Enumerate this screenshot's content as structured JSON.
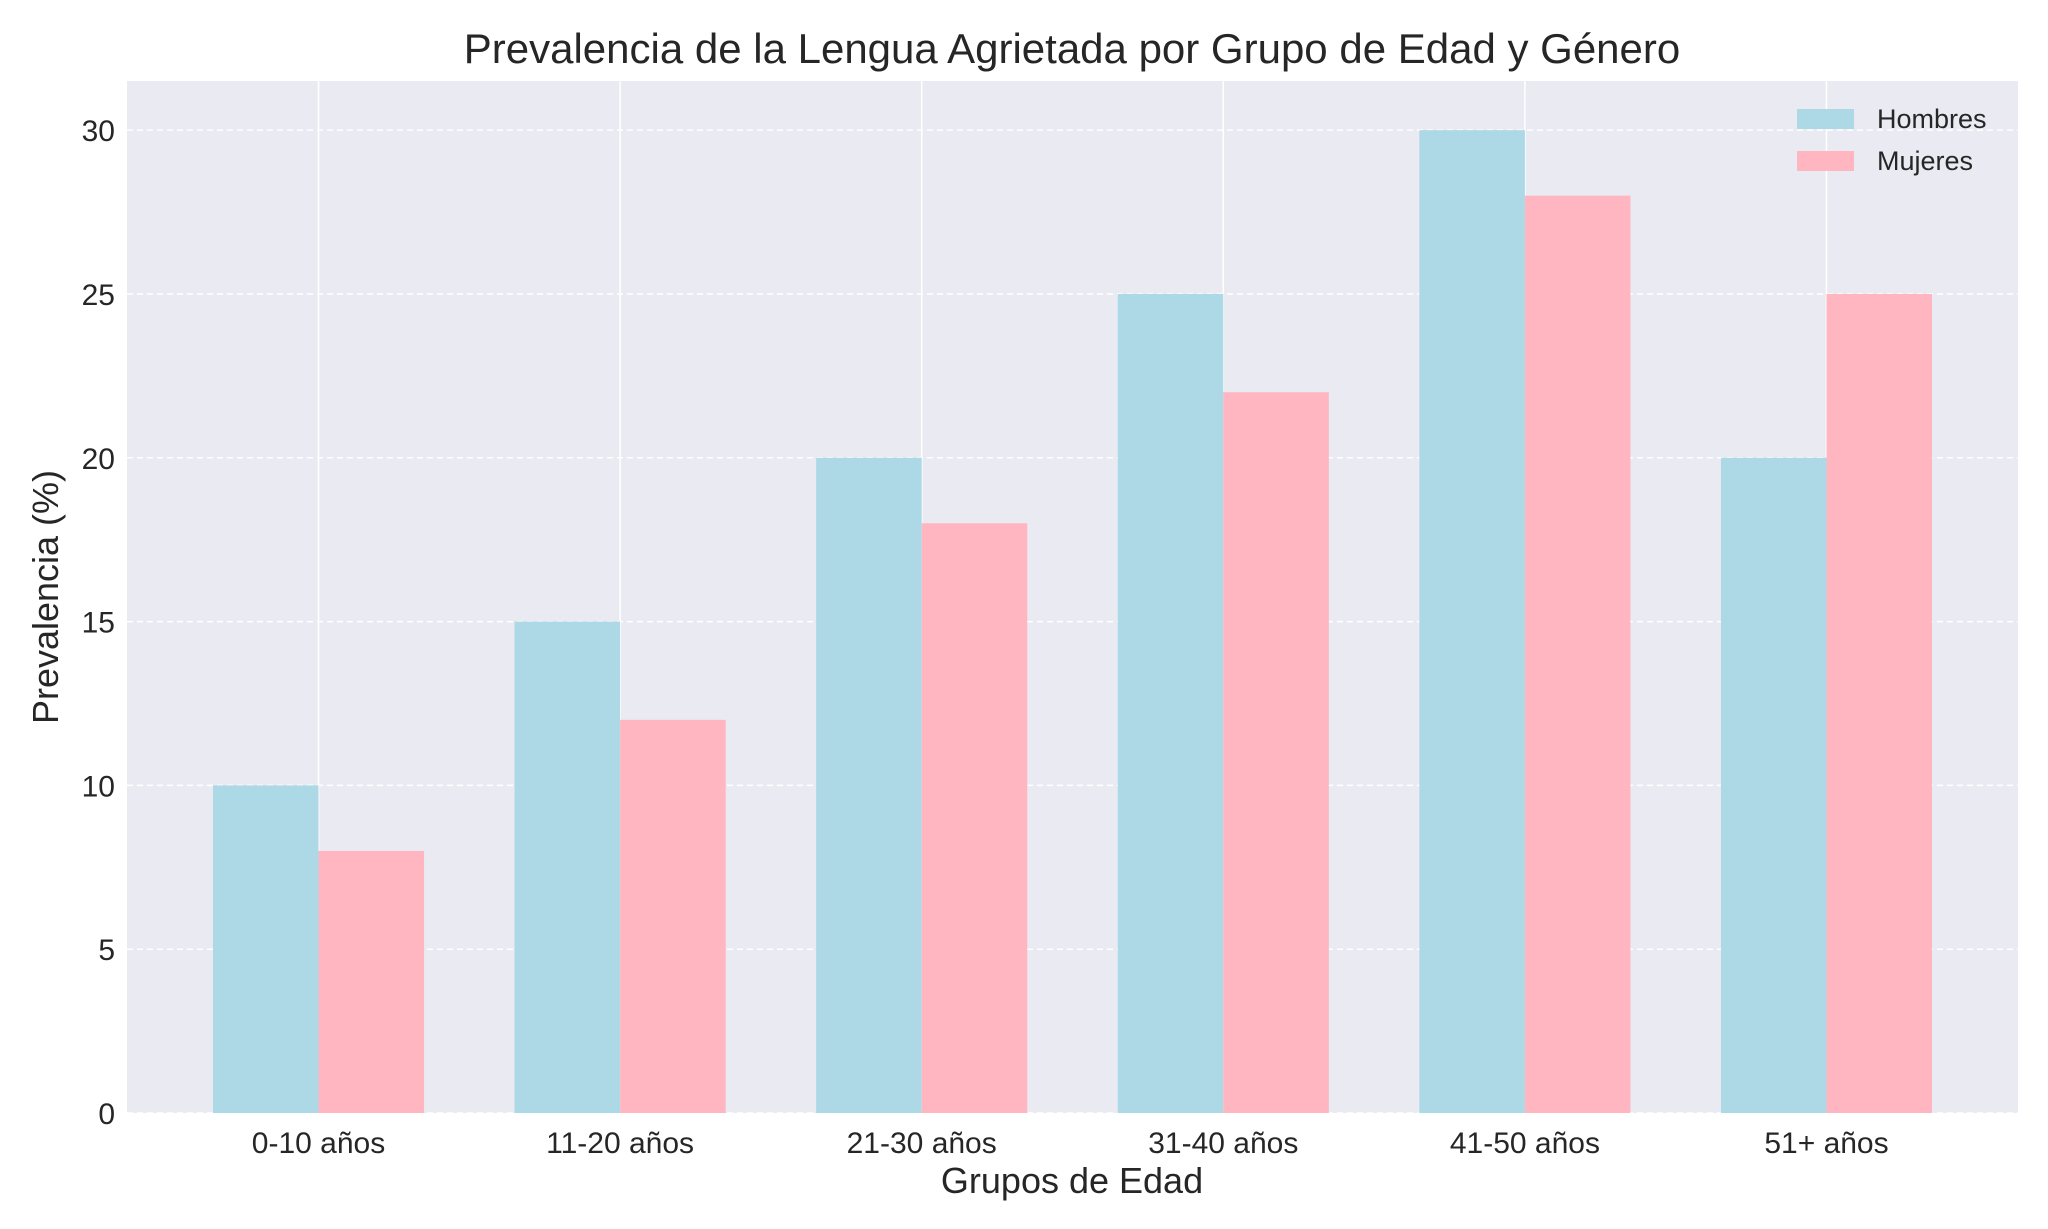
{
  "chart_data": {
    "type": "bar",
    "title": "Prevalencia de la Lengua Agrietada por Grupo de Edad y Género",
    "xlabel": "Grupos de Edad",
    "ylabel": "Prevalencia (%)",
    "categories": [
      "0-10 años",
      "11-20 años",
      "21-30 años",
      "31-40 años",
      "41-50 años",
      "51+ años"
    ],
    "series": [
      {
        "name": "Hombres",
        "values": [
          10,
          15,
          20,
          25,
          30,
          20
        ],
        "color": "#ADD8E6"
      },
      {
        "name": "Mujeres",
        "values": [
          8,
          12,
          18,
          22,
          28,
          25
        ],
        "color": "#FFB6C1"
      }
    ],
    "ylim": [
      0,
      31.5
    ],
    "yticks": [
      0,
      5,
      10,
      15,
      20,
      25,
      30
    ],
    "grid": true,
    "legend": "top-right",
    "background": "#EAEAF2"
  }
}
